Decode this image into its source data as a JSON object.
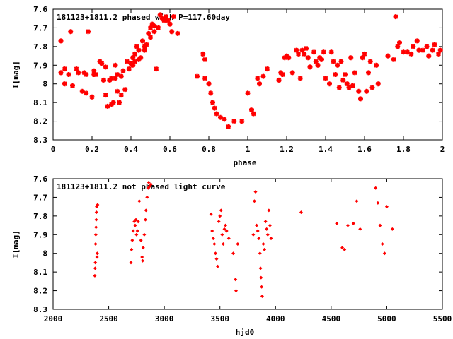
{
  "chart_data": [
    {
      "type": "scatter",
      "title": "181123+1811.2 phased with P=117.60day",
      "xlabel": "phase",
      "ylabel": "I[mag]",
      "xlim": [
        0,
        2
      ],
      "ylim": [
        8.3,
        7.6
      ],
      "y_inverted": true,
      "xticks": [
        "0",
        "0.2",
        "0.4",
        "0.6",
        "0.8",
        "1",
        "1.2",
        "1.4",
        "1.6",
        "1.8",
        "2"
      ],
      "xtick_values": [
        0,
        0.2,
        0.4,
        0.6,
        0.8,
        1.0,
        1.2,
        1.4,
        1.6,
        1.8,
        2.0
      ],
      "yticks": [
        "7.6",
        "7.7",
        "7.8",
        "7.9",
        "8",
        "8.1",
        "8.2",
        "8.3"
      ],
      "ytick_values": [
        7.6,
        7.7,
        7.8,
        7.9,
        8.0,
        8.1,
        8.2,
        8.3
      ],
      "marker_color": "#ff0000",
      "marker": "star",
      "grid": false,
      "series": [
        {
          "x": [
            0.04,
            0.04,
            0.06,
            0.06,
            0.08,
            0.09,
            0.1,
            0.12,
            0.13,
            0.15,
            0.16,
            0.17,
            0.17,
            0.18,
            0.2,
            0.21,
            0.21,
            0.22,
            0.24,
            0.25,
            0.26,
            0.27,
            0.27,
            0.28,
            0.29,
            0.3,
            0.3,
            0.31,
            0.32,
            0.32,
            0.33,
            0.33,
            0.34,
            0.35,
            0.35,
            0.36,
            0.37,
            0.38,
            0.39,
            0.4,
            0.41,
            0.41,
            0.42,
            0.42,
            0.43,
            0.44,
            0.44,
            0.45,
            0.46,
            0.47,
            0.47,
            0.48,
            0.49,
            0.5,
            0.5,
            0.51,
            0.52,
            0.52,
            0.53,
            0.54,
            0.55,
            0.56,
            0.57,
            0.58,
            0.59,
            0.6,
            0.61,
            0.62,
            0.64,
            0.74,
            0.77,
            0.78,
            0.78,
            0.8,
            0.81,
            0.82,
            0.83,
            0.84,
            0.86,
            0.88,
            0.9,
            0.93,
            0.97,
            1.0,
            1.02,
            1.03,
            1.05,
            1.06,
            1.08,
            1.1,
            1.16,
            1.17,
            1.18,
            1.19,
            1.2,
            1.21,
            1.23,
            1.25,
            1.26,
            1.27,
            1.28,
            1.29,
            1.3,
            1.31,
            1.32,
            1.34,
            1.35,
            1.36,
            1.37,
            1.38,
            1.39,
            1.4,
            1.42,
            1.43,
            1.44,
            1.45,
            1.46,
            1.47,
            1.48,
            1.49,
            1.5,
            1.51,
            1.52,
            1.53,
            1.54,
            1.55,
            1.57,
            1.58,
            1.59,
            1.6,
            1.61,
            1.62,
            1.63,
            1.64,
            1.66,
            1.67,
            1.72,
            1.75,
            1.76,
            1.77,
            1.78,
            1.8,
            1.82,
            1.84,
            1.85,
            1.87,
            1.88,
            1.9,
            1.92,
            1.93,
            1.95,
            1.96,
            1.98,
            1.99
          ],
          "y": [
            7.77,
            7.94,
            7.92,
            8.0,
            7.95,
            7.72,
            8.01,
            7.92,
            7.94,
            8.04,
            7.94,
            7.95,
            8.05,
            7.72,
            8.07,
            7.93,
            7.95,
            7.95,
            7.88,
            7.89,
            7.98,
            8.06,
            7.91,
            8.12,
            7.98,
            8.11,
            7.97,
            8.1,
            7.97,
            7.9,
            7.95,
            8.04,
            8.1,
            7.96,
            8.06,
            7.93,
            8.03,
            7.88,
            7.92,
            7.89,
            7.9,
            7.86,
            7.88,
            7.84,
            7.8,
            7.82,
            7.87,
            7.86,
            7.77,
            7.82,
            7.8,
            7.79,
            7.73,
            7.75,
            7.7,
            7.68,
            7.72,
            7.69,
            7.92,
            7.7,
            7.63,
            7.65,
            7.66,
            7.64,
            7.66,
            7.68,
            7.72,
            7.64,
            7.73,
            7.96,
            7.84,
            7.87,
            7.97,
            8.0,
            8.05,
            8.1,
            8.13,
            8.16,
            8.18,
            8.19,
            8.23,
            8.2,
            8.2,
            8.05,
            8.14,
            8.16,
            7.97,
            8.0,
            7.96,
            7.92,
            7.98,
            7.94,
            7.95,
            7.86,
            7.85,
            7.86,
            7.94,
            7.82,
            7.84,
            7.97,
            7.82,
            7.84,
            7.81,
            7.86,
            7.91,
            7.83,
            7.88,
            7.9,
            7.86,
            7.87,
            7.83,
            7.97,
            8.0,
            7.83,
            7.88,
            7.95,
            7.9,
            8.02,
            7.88,
            7.98,
            7.95,
            8.0,
            8.02,
            7.86,
            8.01,
            7.94,
            8.04,
            8.08,
            7.86,
            7.84,
            8.04,
            7.94,
            7.88,
            8.02,
            7.9,
            8.0,
            7.85,
            7.87,
            7.64,
            7.8,
            7.78,
            7.83,
            7.83,
            7.84,
            7.8,
            7.77,
            7.82,
            7.82,
            7.8,
            7.85,
            7.82,
            7.79,
            7.84,
            7.82
          ],
          "y_note": ""
        }
      ]
    },
    {
      "type": "scatter",
      "title": "181123+1811.2 not phased light curve",
      "xlabel": "hjd0",
      "ylabel": "I[mag]",
      "xlim": [
        2000,
        5500
      ],
      "ylim": [
        8.3,
        7.6
      ],
      "y_inverted": true,
      "xticks": [
        "2000",
        "2500",
        "3000",
        "3500",
        "4000",
        "4500",
        "5000",
        "5500"
      ],
      "xtick_values": [
        2000,
        2500,
        3000,
        3500,
        4000,
        4500,
        5000,
        5500
      ],
      "yticks": [
        "7.6",
        "7.7",
        "7.8",
        "7.9",
        "8",
        "8.1",
        "8.2",
        "8.3"
      ],
      "ytick_values": [
        7.6,
        7.7,
        7.8,
        7.9,
        8.0,
        8.1,
        8.2,
        8.3
      ],
      "marker_color": "#ff0000",
      "marker": "diamond",
      "grid": false,
      "series": [
        {
          "x": [
            2375,
            2378,
            2380,
            2382,
            2384,
            2386,
            2388,
            2390,
            2392,
            2395,
            2397,
            2400,
            2700,
            2705,
            2712,
            2720,
            2730,
            2738,
            2745,
            2750,
            2758,
            2765,
            2775,
            2790,
            2800,
            2805,
            2810,
            2820,
            2830,
            2835,
            2845,
            2855,
            2860,
            2870,
            2880,
            3420,
            3430,
            3440,
            3450,
            3460,
            3470,
            3480,
            3490,
            3500,
            3510,
            3520,
            3530,
            3540,
            3550,
            3560,
            3580,
            3620,
            3640,
            3645,
            3660,
            3800,
            3810,
            3820,
            3830,
            3840,
            3850,
            3860,
            3865,
            3870,
            3875,
            3880,
            3890,
            3900,
            3910,
            3920,
            3930,
            3940,
            3950,
            3960,
            4230,
            4550,
            4600,
            4620,
            4650,
            4700,
            4730,
            4760,
            4900,
            4920,
            4940,
            4960,
            4980,
            5000,
            5050
          ],
          "y": [
            8.12,
            8.08,
            8.05,
            7.95,
            7.9,
            7.86,
            7.82,
            7.78,
            7.75,
            8.02,
            8.0,
            7.74,
            8.05,
            7.98,
            7.93,
            7.88,
            7.83,
            7.85,
            7.82,
            7.9,
            7.88,
            7.83,
            7.72,
            7.93,
            8.02,
            8.04,
            7.97,
            7.9,
            7.82,
            7.77,
            7.7,
            7.65,
            7.62,
            7.64,
            7.63,
            7.79,
            7.88,
            7.92,
            7.95,
            8.0,
            8.03,
            8.07,
            7.83,
            7.8,
            7.77,
            7.9,
            7.95,
            7.87,
            7.85,
            7.88,
            7.92,
            8.0,
            8.14,
            8.2,
            7.95,
            7.9,
            7.72,
            7.67,
            7.85,
            7.88,
            7.92,
            8.0,
            8.08,
            8.13,
            8.18,
            8.23,
            7.95,
            7.98,
            7.83,
            7.87,
            7.9,
            7.77,
            7.85,
            7.92,
            7.78,
            7.84,
            7.97,
            7.98,
            7.85,
            7.84,
            7.72,
            7.87,
            7.65,
            7.73,
            7.85,
            7.95,
            8.0,
            7.75,
            7.87
          ],
          "y_note": ""
        }
      ]
    }
  ]
}
